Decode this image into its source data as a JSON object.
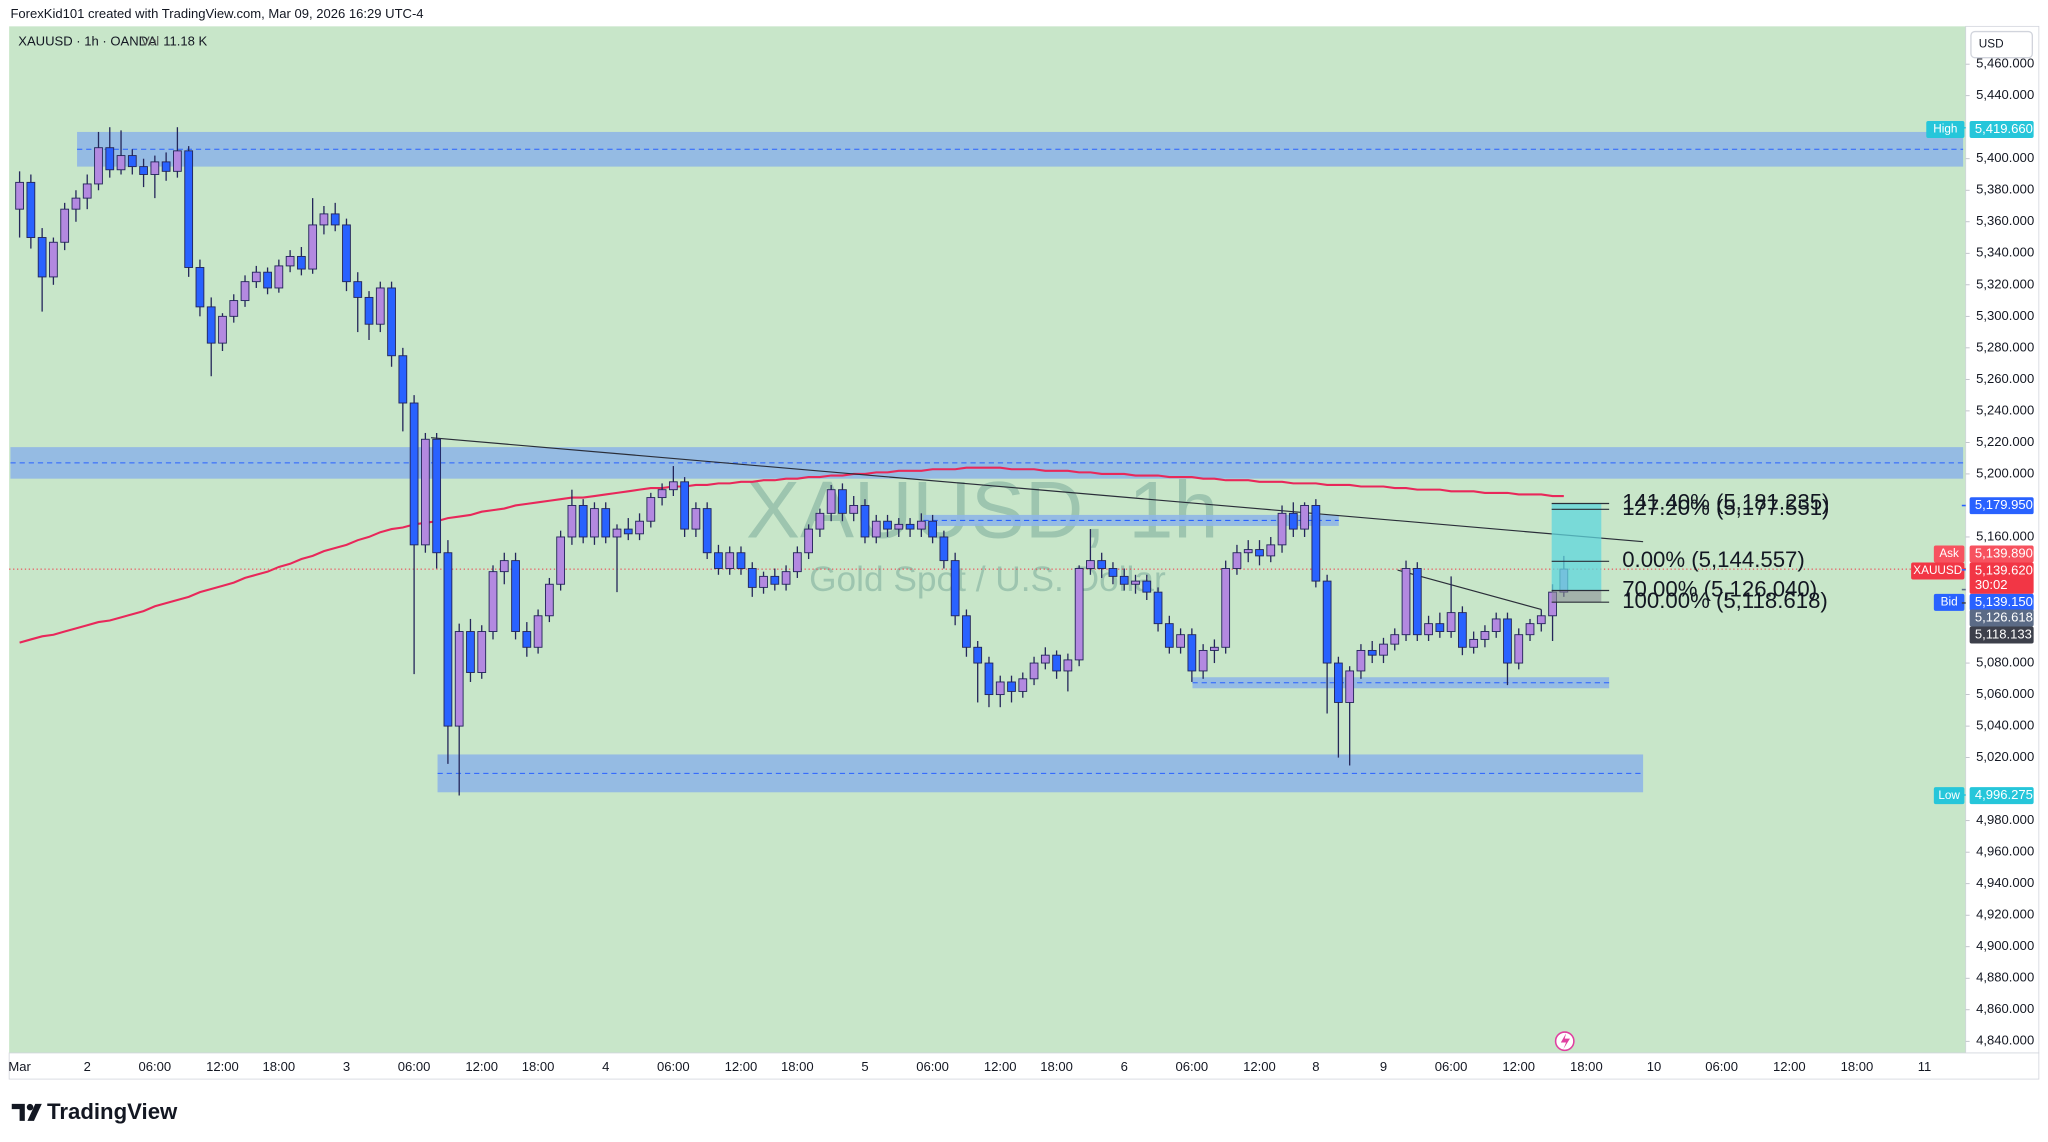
{
  "header": {
    "credit": "ForexKid101 created with TradingView.com, Mar 09, 2026 16:29 UTC-4",
    "symbol": "XAUUSD · 1h · OANDA",
    "volume_label": "Vol",
    "volume": "11.18 K"
  },
  "watermark": {
    "title": "XAUUSD, 1h",
    "subtitle": "Gold Spot / U.S. Dollar"
  },
  "currency": "USD",
  "brand": "TradingView",
  "chart_data": {
    "type": "candlestick",
    "categories": [
      "Mar",
      null,
      null,
      null,
      null,
      null,
      "2",
      null,
      null,
      null,
      null,
      null,
      "06:00",
      null,
      null,
      null,
      null,
      null,
      "12:00",
      null,
      null,
      null,
      null,
      "18:00",
      null,
      null,
      null,
      null,
      null,
      "3",
      null,
      null,
      null,
      null,
      null,
      "06:00",
      null,
      null,
      null,
      null,
      null,
      "12:00",
      null,
      null,
      null,
      null,
      "18:00",
      null,
      null,
      null,
      null,
      null,
      "4",
      null,
      null,
      null,
      null,
      null,
      "06:00",
      null,
      null,
      null,
      null,
      null,
      "12:00",
      null,
      null,
      null,
      null,
      "18:00",
      null,
      null,
      null,
      null,
      null,
      "5",
      null,
      null,
      null,
      null,
      null,
      "06:00",
      null,
      null,
      null,
      null,
      null,
      "12:00",
      null,
      null,
      null,
      null,
      "18:00",
      null,
      null,
      null,
      null,
      null,
      "6",
      null,
      null,
      null,
      null,
      null,
      "06:00",
      null,
      null,
      null,
      null,
      null,
      "12:00",
      null,
      null,
      null,
      null,
      "8",
      null,
      null,
      null,
      null,
      null,
      "9",
      null,
      null,
      null,
      null,
      null,
      "06:00",
      null,
      null,
      null,
      null,
      null,
      "12:00",
      null,
      null,
      null,
      null,
      null,
      "18:00",
      null,
      null,
      null,
      null,
      null,
      "10",
      null,
      null,
      null,
      null,
      null,
      "06:00",
      null,
      null,
      null,
      null,
      null,
      "12:00",
      null,
      null,
      null,
      null,
      null,
      "18:00",
      null,
      null,
      null,
      null,
      null,
      "11"
    ],
    "open": [
      5368,
      5385,
      5350,
      5325,
      5347,
      5368,
      5375,
      5384,
      5407,
      5393,
      5402,
      5395,
      5390,
      5398,
      5392,
      5405,
      5331,
      5306,
      5283,
      5300,
      5310,
      5322,
      5328,
      5318,
      5332,
      5338,
      5330,
      5358,
      5365,
      5358,
      5322,
      5312,
      5295,
      5318,
      5275,
      5245,
      5155,
      5222,
      5150,
      5040,
      5100,
      5074,
      5100,
      5138,
      5145,
      5100,
      5090,
      5110,
      5130,
      5160,
      5180,
      5160,
      5178,
      5160,
      5165,
      5162,
      5170,
      5185,
      5190,
      5195,
      5165,
      5178,
      5150,
      5140,
      5150,
      5140,
      5128,
      5135,
      5130,
      5138,
      5150,
      5165,
      5175,
      5190,
      5175,
      5180,
      5160,
      5170,
      5165,
      5168,
      5165,
      5170,
      5160,
      5145,
      5110,
      5090,
      5080,
      5060,
      5068,
      5062,
      5070,
      5080,
      5085,
      5075,
      5082,
      5140,
      5145,
      5140,
      5135,
      5130,
      5132,
      5125,
      5105,
      5090,
      5098,
      5075,
      5088,
      5090,
      5140,
      5150,
      5152,
      5148,
      5155,
      5175,
      5165,
      5180,
      5132,
      5080,
      5055,
      5075,
      5088,
      5085,
      5092,
      5098,
      5140,
      5098,
      5105,
      5100,
      5112,
      5090,
      5095,
      5100,
      5108,
      5080,
      5098,
      5105,
      5110,
      5125,
      null,
      null,
      null,
      null,
      null,
      null,
      null,
      null,
      null,
      null,
      null,
      null,
      null,
      null,
      null,
      null,
      null,
      null,
      null,
      null,
      null,
      null,
      null,
      null,
      null,
      null,
      null,
      null,
      null,
      null,
      null,
      null
    ],
    "high": [
      5392,
      5390,
      5356,
      5350,
      5372,
      5380,
      5390,
      5417,
      5420,
      5418,
      5406,
      5400,
      5402,
      5404,
      5420,
      5408,
      5336,
      5312,
      5302,
      5314,
      5326,
      5332,
      5331,
      5336,
      5342,
      5344,
      5375,
      5370,
      5372,
      5362,
      5328,
      5316,
      5322,
      5322,
      5280,
      5250,
      5226,
      5226,
      5158,
      5105,
      5108,
      5104,
      5142,
      5150,
      5150,
      5106,
      5114,
      5134,
      5164,
      5190,
      5184,
      5182,
      5182,
      5168,
      5172,
      5175,
      5188,
      5194,
      5205,
      5198,
      5182,
      5182,
      5155,
      5154,
      5154,
      5144,
      5138,
      5140,
      5142,
      5154,
      5168,
      5178,
      5193,
      5194,
      5186,
      5184,
      5174,
      5174,
      5172,
      5172,
      5175,
      5174,
      5164,
      5150,
      5114,
      5094,
      5084,
      5072,
      5072,
      5074,
      5084,
      5090,
      5088,
      5086,
      5142,
      5165,
      5150,
      5144,
      5140,
      5136,
      5136,
      5128,
      5110,
      5102,
      5102,
      5092,
      5095,
      5145,
      5155,
      5158,
      5158,
      5160,
      5180,
      5182,
      5182,
      5184,
      5136,
      5084,
      5078,
      5092,
      5094,
      5096,
      5102,
      5145,
      5144,
      5110,
      5112,
      5135,
      5116,
      5100,
      5104,
      5112,
      5112,
      5102,
      5108,
      5114,
      5130,
      5148,
      null,
      null,
      null,
      null,
      null,
      null,
      null,
      null,
      null,
      null,
      null,
      null,
      null,
      null,
      null,
      null,
      null,
      null,
      null,
      null,
      null,
      null,
      null,
      null,
      null,
      null,
      null,
      null,
      null,
      null,
      null,
      null
    ],
    "low": [
      5350,
      5343,
      5303,
      5320,
      5342,
      5360,
      5368,
      5380,
      5388,
      5390,
      5390,
      5382,
      5375,
      5386,
      5388,
      5325,
      5300,
      5262,
      5278,
      5296,
      5306,
      5318,
      5314,
      5315,
      5328,
      5326,
      5327,
      5352,
      5354,
      5316,
      5290,
      5285,
      5290,
      5268,
      5227,
      5073,
      5150,
      5140,
      5016,
      4996,
      5068,
      5070,
      5095,
      5130,
      5095,
      5084,
      5086,
      5106,
      5126,
      5155,
      5156,
      5155,
      5156,
      5125,
      5158,
      5158,
      5166,
      5180,
      5186,
      5160,
      5160,
      5146,
      5136,
      5136,
      5136,
      5122,
      5124,
      5126,
      5126,
      5134,
      5146,
      5160,
      5170,
      5170,
      5170,
      5156,
      5156,
      5160,
      5160,
      5160,
      5160,
      5156,
      5140,
      5104,
      5084,
      5055,
      5052,
      5052,
      5055,
      5058,
      5066,
      5076,
      5070,
      5062,
      5078,
      5136,
      5134,
      5130,
      5126,
      5124,
      5120,
      5100,
      5086,
      5086,
      5068,
      5070,
      5080,
      5086,
      5136,
      5144,
      5142,
      5144,
      5150,
      5160,
      5160,
      5128,
      5048,
      5020,
      5015,
      5070,
      5080,
      5080,
      5088,
      5094,
      5094,
      5094,
      5096,
      5096,
      5085,
      5086,
      5090,
      5096,
      5066,
      5076,
      5094,
      5100,
      5094,
      5122,
      null,
      null,
      null,
      null,
      null,
      null,
      null,
      null,
      null,
      null,
      null,
      null,
      null,
      null,
      null,
      null,
      null,
      null,
      null,
      null,
      null,
      null,
      null,
      null,
      null,
      null,
      null,
      null,
      null,
      null,
      null,
      null
    ],
    "close": [
      5385,
      5350,
      5325,
      5347,
      5368,
      5375,
      5384,
      5407,
      5393,
      5402,
      5395,
      5390,
      5398,
      5392,
      5405,
      5331,
      5306,
      5283,
      5300,
      5310,
      5322,
      5328,
      5318,
      5332,
      5338,
      5330,
      5358,
      5365,
      5358,
      5322,
      5312,
      5295,
      5318,
      5275,
      5245,
      5155,
      5222,
      5150,
      5040,
      5100,
      5074,
      5100,
      5138,
      5145,
      5100,
      5090,
      5110,
      5130,
      5160,
      5180,
      5160,
      5178,
      5160,
      5165,
      5162,
      5170,
      5185,
      5190,
      5195,
      5165,
      5178,
      5150,
      5140,
      5150,
      5140,
      5128,
      5135,
      5130,
      5138,
      5150,
      5165,
      5175,
      5190,
      5175,
      5180,
      5160,
      5170,
      5165,
      5168,
      5165,
      5170,
      5160,
      5145,
      5110,
      5090,
      5080,
      5060,
      5068,
      5062,
      5070,
      5080,
      5085,
      5075,
      5082,
      5140,
      5145,
      5140,
      5135,
      5130,
      5132,
      5125,
      5105,
      5090,
      5098,
      5075,
      5088,
      5090,
      5140,
      5150,
      5152,
      5148,
      5155,
      5175,
      5165,
      5180,
      5132,
      5080,
      5055,
      5075,
      5088,
      5085,
      5092,
      5098,
      5140,
      5098,
      5105,
      5100,
      5112,
      5090,
      5095,
      5100,
      5108,
      5080,
      5098,
      5105,
      5110,
      5125,
      5139.62,
      null,
      null,
      null,
      null,
      null,
      null,
      null,
      null,
      null,
      null,
      null,
      null,
      null,
      null,
      null,
      null,
      null,
      null,
      null,
      null,
      null,
      null,
      null,
      null,
      null,
      null,
      null,
      null,
      null,
      null,
      null,
      null
    ],
    "moving_average": {
      "color": "#e8285a",
      "values": [
        5093,
        5095,
        5097,
        5098,
        5100,
        5102,
        5104,
        5106,
        5107,
        5109,
        5111,
        5113,
        5116,
        5118,
        5120,
        5122,
        5125,
        5127,
        5129,
        5131,
        5134,
        5136,
        5138,
        5141,
        5143,
        5146,
        5148,
        5151,
        5153,
        5155,
        5158,
        5160,
        5163,
        5165,
        5166,
        5168,
        5169,
        5170,
        5172,
        5173,
        5174,
        5176,
        5177,
        5178,
        5180,
        5181,
        5182,
        5183,
        5184,
        5185,
        5185,
        5186,
        5187,
        5188,
        5189,
        5190,
        5191,
        5191,
        5192,
        5192,
        5193,
        5193,
        5194,
        5194,
        5195,
        5195,
        5196,
        5196,
        5197,
        5197,
        5198,
        5198,
        5199,
        5199,
        5200,
        5200,
        5201,
        5201,
        5202,
        5202,
        5202,
        5203,
        5203,
        5203,
        5204,
        5204,
        5204,
        5204,
        5203,
        5203,
        5203,
        5202,
        5202,
        5202,
        5201,
        5201,
        5200,
        5200,
        5200,
        5199,
        5199,
        5199,
        5198,
        5198,
        5198,
        5197,
        5197,
        5196,
        5196,
        5196,
        5195,
        5195,
        5195,
        5194,
        5194,
        5194,
        5193,
        5193,
        5193,
        5192,
        5192,
        5192,
        5191,
        5191,
        5190,
        5190,
        5190,
        5189,
        5189,
        5189,
        5188,
        5188,
        5188,
        5187,
        5187,
        5187,
        5186,
        5186,
        null,
        null,
        null,
        null,
        null,
        null,
        null,
        null,
        null,
        null,
        null,
        null,
        null,
        null,
        null,
        null,
        null,
        null,
        null,
        null,
        null,
        null,
        null,
        null,
        null,
        null,
        null,
        null,
        null,
        null,
        null,
        null
      ]
    },
    "colors": {
      "up": "#b389e0",
      "down": "#2962ff",
      "border": "#24265a",
      "background": "#c8e6c9"
    },
    "zones": {
      "color": "#8fb6e6",
      "line_color": "#2962ff",
      "items": [
        {
          "top": 5417,
          "bottom": 5395
        },
        {
          "top": 5217,
          "bottom": 5197
        },
        {
          "top": 5022,
          "bottom": 4998
        },
        {
          "top": 5174,
          "bottom": 5167
        },
        {
          "top": 5071,
          "bottom": 5064
        }
      ]
    },
    "trendlines": [
      {
        "start": 5223,
        "end": 5157
      },
      {
        "start": 5139,
        "end": 5114
      }
    ],
    "fib_levels": [
      {
        "label": "141.40% (5,181.235)",
        "value": 5181.235
      },
      {
        "label": "127.20% (5,177.551)",
        "value": 5177.551
      },
      {
        "label": "0.00% (5,144.557)",
        "value": 5144.557
      },
      {
        "label": "70.00% (5,126.040)",
        "value": 5126.04
      },
      {
        "label": "100.00% (5,118.618)",
        "value": 5118.618
      }
    ],
    "price_labels": [
      {
        "tag": "High",
        "value": 5419.66,
        "label": "5,419.660",
        "color": "#26c6da"
      },
      {
        "value": 5179.95,
        "label": "5,179.950",
        "color": "#2962ff"
      },
      {
        "tag": "Ask",
        "value": 5139.89,
        "label": "5,139.890",
        "color": "#f7525f"
      },
      {
        "tag": "XAUUSD",
        "value": 5139.62,
        "label": "5,139.620",
        "countdown": "30:02",
        "color": "#f23645"
      },
      {
        "tag": "Bid",
        "value": 5139.15,
        "label": "5,139.150",
        "color": "#2962ff"
      },
      {
        "value": 5126.618,
        "label": "5,126.618",
        "color": "#5b6b86"
      },
      {
        "value": 5118.133,
        "label": "5,118.133",
        "color": "#3d404b"
      },
      {
        "tag": "Low",
        "value": 4996.275,
        "label": "4,996.275",
        "color": "#26c6da"
      }
    ],
    "ylim": [
      4832.6,
      5484
    ],
    "yticks": [
      {
        "value": 5460,
        "label": "5,460.000"
      },
      {
        "value": 5440,
        "label": "5,440.000"
      },
      {
        "value": 5400,
        "label": "5,400.000"
      },
      {
        "value": 5380,
        "label": "5,380.000"
      },
      {
        "value": 5360,
        "label": "5,360.000"
      },
      {
        "value": 5340,
        "label": "5,340.000"
      },
      {
        "value": 5320,
        "label": "5,320.000"
      },
      {
        "value": 5300,
        "label": "5,300.000"
      },
      {
        "value": 5280,
        "label": "5,280.000"
      },
      {
        "value": 5260,
        "label": "5,260.000"
      },
      {
        "value": 5240,
        "label": "5,240.000"
      },
      {
        "value": 5220,
        "label": "5,220.000"
      },
      {
        "value": 5200,
        "label": "5,200.000"
      },
      {
        "value": 5160,
        "label": "5,160.000"
      },
      {
        "value": 5080,
        "label": "5,080.000"
      },
      {
        "value": 5060,
        "label": "5,060.000"
      },
      {
        "value": 5040,
        "label": "5,040.000"
      },
      {
        "value": 5020,
        "label": "5,020.000"
      },
      {
        "value": 4980,
        "label": "4,980.000"
      },
      {
        "value": 4960,
        "label": "4,960.000"
      },
      {
        "value": 4940,
        "label": "4,940.000"
      },
      {
        "value": 4920,
        "label": "4,920.000"
      },
      {
        "value": 4900,
        "label": "4,900.000"
      },
      {
        "value": 4880,
        "label": "4,880.000"
      },
      {
        "value": 4860,
        "label": "4,860.000"
      },
      {
        "value": 4840,
        "label": "4,840.000"
      }
    ]
  }
}
